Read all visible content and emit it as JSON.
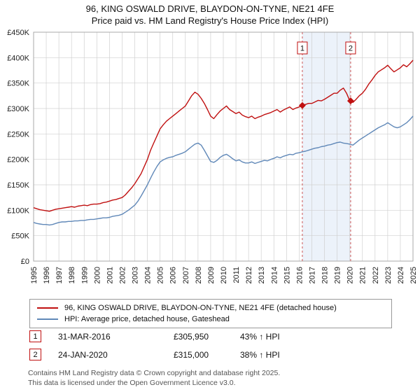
{
  "title": "96, KING OSWALD DRIVE, BLAYDON-ON-TYNE, NE21 4FE",
  "subtitle": "Price paid vs. HM Land Registry's House Price Index (HPI)",
  "legend": {
    "series1": "96, KING OSWALD DRIVE, BLAYDON-ON-TYNE, NE21 4FE (detached house)",
    "series2": "HPI: Average price, detached house, Gateshead"
  },
  "annotations": [
    {
      "num": "1",
      "date": "31-MAR-2016",
      "price": "£305,950",
      "hpi": "43% ↑ HPI"
    },
    {
      "num": "2",
      "date": "24-JAN-2020",
      "price": "£315,000",
      "hpi": "38% ↑ HPI"
    }
  ],
  "footer": {
    "line1": "Contains HM Land Registry data © Crown copyright and database right 2025.",
    "line2": "This data is licensed under the Open Government Licence v3.0."
  },
  "colors": {
    "property": "#c01010",
    "hpi": "#6088b8",
    "band": "#dce7f6",
    "marker_line": "#cc5555",
    "grid": "#d0d0d0",
    "plot_border": "#aaaaaa",
    "text": "#222222"
  },
  "chart_data": {
    "type": "line",
    "title": "96, KING OSWALD DRIVE, BLAYDON-ON-TYNE, NE21 4FE — Price paid vs. HPI",
    "unit": "GBP thousands",
    "xlim": [
      1995,
      2025
    ],
    "ylim": [
      0,
      450
    ],
    "grid": true,
    "legend_position": "bottom",
    "x_start": 1995,
    "x_step": 0.25,
    "x_ticks": [
      1995,
      1996,
      1997,
      1998,
      1999,
      2000,
      2001,
      2002,
      2003,
      2004,
      2005,
      2006,
      2007,
      2008,
      2009,
      2010,
      2011,
      2012,
      2013,
      2014,
      2015,
      2016,
      2017,
      2018,
      2019,
      2020,
      2021,
      2022,
      2023,
      2024,
      2025
    ],
    "y_tick_values": [
      0,
      50,
      100,
      150,
      200,
      250,
      300,
      350,
      400,
      450
    ],
    "y_tick_labels": [
      "£0",
      "£50K",
      "£100K",
      "£150K",
      "£200K",
      "£250K",
      "£300K",
      "£350K",
      "£400K",
      "£450K"
    ],
    "band": {
      "x1": 2016.25,
      "x2": 2020.07
    },
    "markers": [
      {
        "label": "1",
        "x": 2016.25,
        "y": 305.95
      },
      {
        "label": "2",
        "x": 2020.07,
        "y": 315
      }
    ],
    "series": [
      {
        "name": "96, KING OSWALD DRIVE, BLAYDON-ON-TYNE, NE21 4FE (detached house)",
        "color_key": "property",
        "values": [
          105,
          103,
          101,
          100,
          99,
          98,
          100,
          102,
          103,
          104,
          105,
          106,
          107,
          106,
          108,
          109,
          110,
          109,
          111,
          112,
          112,
          113,
          115,
          116,
          118,
          120,
          121,
          123,
          125,
          130,
          137,
          144,
          152,
          162,
          172,
          186,
          200,
          218,
          232,
          246,
          260,
          268,
          275,
          280,
          285,
          290,
          295,
          300,
          305,
          315,
          325,
          332,
          328,
          320,
          310,
          298,
          285,
          280,
          288,
          295,
          300,
          305,
          298,
          294,
          290,
          293,
          287,
          284,
          282,
          285,
          280,
          283,
          285,
          288,
          290,
          292,
          295,
          298,
          293,
          297,
          300,
          303,
          298,
          301,
          303,
          306,
          308,
          310,
          310,
          313,
          316,
          315,
          318,
          322,
          326,
          330,
          330,
          336,
          340,
          330,
          315,
          312,
          318,
          325,
          330,
          338,
          348,
          356,
          365,
          372,
          376,
          380,
          385,
          378,
          372,
          376,
          380,
          386,
          382,
          388,
          395
        ]
      },
      {
        "name": "HPI: Average price, detached house, Gateshead",
        "color_key": "hpi",
        "values": [
          76,
          74,
          73,
          72,
          72,
          71,
          72,
          74,
          76,
          77,
          77,
          78,
          78,
          79,
          79,
          80,
          80,
          81,
          82,
          82,
          83,
          84,
          85,
          85,
          86,
          88,
          89,
          90,
          92,
          96,
          100,
          105,
          110,
          118,
          128,
          139,
          150,
          163,
          175,
          186,
          195,
          199,
          202,
          204,
          205,
          208,
          210,
          212,
          215,
          220,
          225,
          230,
          232,
          228,
          218,
          207,
          196,
          194,
          198,
          204,
          208,
          210,
          206,
          201,
          197,
          199,
          195,
          193,
          193,
          195,
          192,
          194,
          196,
          198,
          197,
          200,
          202,
          205,
          203,
          206,
          208,
          210,
          209,
          212,
          213,
          215,
          216,
          218,
          220,
          222,
          223,
          225,
          226,
          228,
          229,
          231,
          233,
          234,
          232,
          231,
          230,
          228,
          233,
          238,
          242,
          246,
          250,
          254,
          258,
          262,
          265,
          268,
          272,
          268,
          264,
          262,
          264,
          268,
          272,
          278,
          285
        ]
      }
    ]
  }
}
